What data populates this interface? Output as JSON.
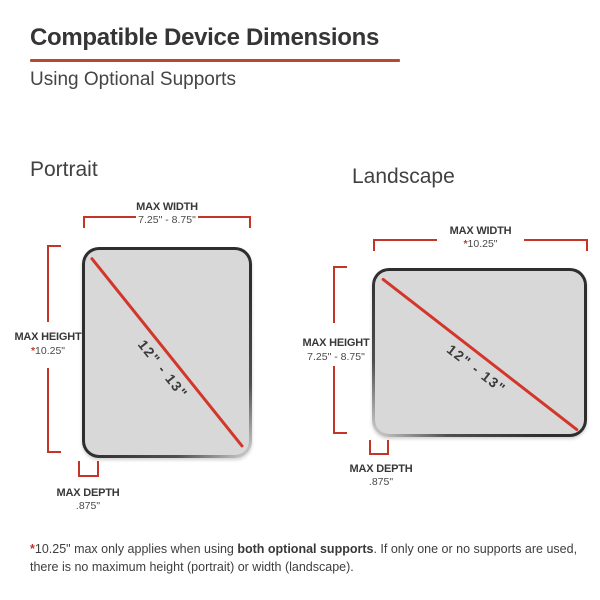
{
  "header": {
    "title": "Compatible Device Dimensions",
    "subtitle": "Using Optional Supports"
  },
  "colors": {
    "accent_underline": "#b8492f",
    "bracket_red": "#c23527",
    "diagonal_red": "#d3362a",
    "device_fill": "#d8d8d8",
    "device_border": "#2e2e2e",
    "text_dark": "#3a3a3a"
  },
  "portrait": {
    "label": "Portrait",
    "max_width_label": "MAX WIDTH",
    "max_width_value": "7.25\" - 8.75\"",
    "max_height_label": "MAX HEIGHT",
    "max_height_asterisk": "*",
    "max_height_value": "10.25\"",
    "diagonal_value": "12\" - 13\"",
    "max_depth_label": "MAX DEPTH",
    "max_depth_value": ".875\""
  },
  "landscape": {
    "label": "Landscape",
    "max_width_label": "MAX WIDTH",
    "max_width_asterisk": "*",
    "max_width_value": "10.25\"",
    "max_height_label": "MAX HEIGHT",
    "max_height_value": "7.25\" - 8.75\"",
    "diagonal_value": "12\" - 13\"",
    "max_depth_label": "MAX DEPTH",
    "max_depth_value": ".875\""
  },
  "footnote": {
    "asterisk": "*",
    "pre_bold": "10.25\" max only applies when using ",
    "bold": "both optional supports",
    "post_bold": ". If only one or no supports are used, there is no maximum height (portrait) or width (landscape)."
  }
}
